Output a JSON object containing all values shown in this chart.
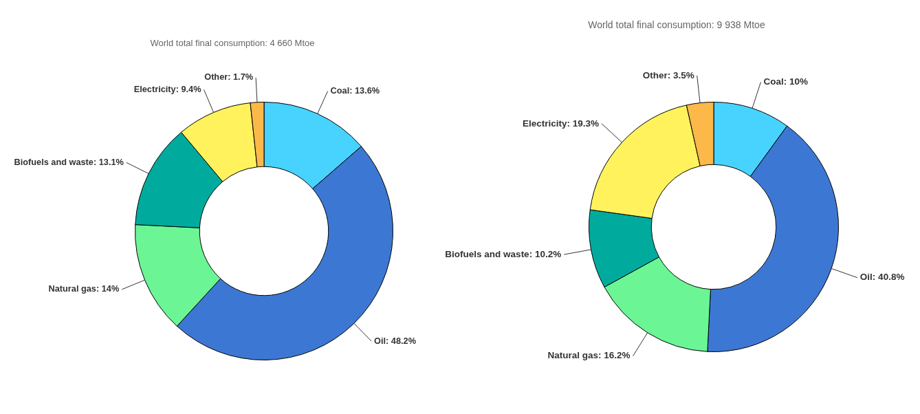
{
  "chart_data": [
    {
      "type": "donut",
      "title": "World total final consumption: 4 660 Mtoe",
      "categories": [
        "Coal",
        "Oil",
        "Natural gas",
        "Biofuels and waste",
        "Electricity",
        "Other"
      ],
      "values": [
        13.6,
        48.2,
        14,
        13.1,
        9.4,
        1.7
      ],
      "colors": [
        "#48d3ff",
        "#3c78d3",
        "#6bf595",
        "#00ab9e",
        "#fff25c",
        "#fcb849"
      ],
      "value_labels": [
        "13.6%",
        "48.2%",
        "14%",
        "13.1%",
        "9.4%",
        "1.7%"
      ]
    },
    {
      "type": "donut",
      "title": "World total final consumption: 9 938 Mtoe",
      "categories": [
        "Coal",
        "Oil",
        "Natural gas",
        "Biofuels and waste",
        "Electricity",
        "Other"
      ],
      "values": [
        10,
        40.8,
        16.2,
        10.2,
        19.3,
        3.5
      ],
      "colors": [
        "#48d3ff",
        "#3c78d3",
        "#6bf595",
        "#00ab9e",
        "#fff25c",
        "#fcb849"
      ],
      "value_labels": [
        "10%",
        "40.8%",
        "16.2%",
        "10.2%",
        "19.3%",
        "3.5%"
      ]
    }
  ]
}
